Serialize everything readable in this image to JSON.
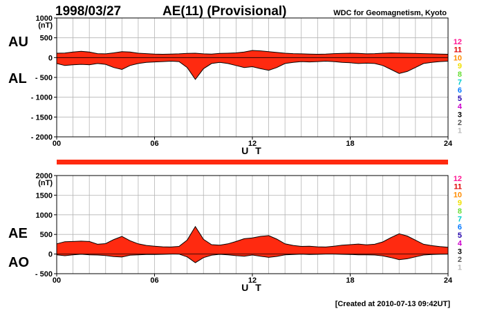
{
  "header": {
    "date": "1998/03/27",
    "title": "AE(11) (Provisional)",
    "source": "WDC for Geomagnetism, Kyoto"
  },
  "footer": {
    "created": "[Created at 2010-07-13 09:42UT]"
  },
  "colors": {
    "fill": "#ff2a10",
    "outline": "#000000",
    "grid": "#b4b4b4",
    "bar": "#ff2a10"
  },
  "chart_data": [
    {
      "type": "area",
      "panel": "AU/AL",
      "xlabel": "U T",
      "unit": "(nT)",
      "xlim": [
        0,
        24
      ],
      "ylim": [
        -2000,
        1000
      ],
      "x_ticks": [
        "00",
        "06",
        "12",
        "18",
        "24"
      ],
      "y_ticks": [
        "1000",
        "500",
        "0",
        "- 500",
        "- 1000",
        "- 1500",
        "- 2000"
      ],
      "side_labels": [
        "AU",
        "AL"
      ],
      "series": [
        {
          "name": "AU",
          "x": [
            0,
            0.5,
            1,
            1.5,
            2,
            2.5,
            3,
            3.5,
            4,
            4.5,
            5,
            5.5,
            6,
            6.5,
            7,
            7.5,
            8,
            8.5,
            9,
            9.5,
            10,
            10.5,
            11,
            11.5,
            12,
            12.5,
            13,
            13.5,
            14,
            14.5,
            15,
            15.5,
            16,
            16.5,
            17,
            17.5,
            18,
            18.5,
            19,
            19.5,
            20,
            20.5,
            21,
            21.5,
            22,
            22.5,
            23,
            23.5,
            24
          ],
          "values": [
            110,
            115,
            140,
            160,
            140,
            100,
            95,
            120,
            150,
            140,
            110,
            100,
            90,
            85,
            90,
            95,
            105,
            110,
            95,
            90,
            105,
            110,
            120,
            140,
            180,
            170,
            150,
            130,
            110,
            100,
            95,
            90,
            85,
            90,
            100,
            105,
            110,
            105,
            95,
            100,
            110,
            120,
            115,
            110,
            105,
            100,
            95,
            90,
            85
          ]
        },
        {
          "name": "AL",
          "x": [
            0,
            0.5,
            1,
            1.5,
            2,
            2.5,
            3,
            3.5,
            4,
            4.5,
            5,
            5.5,
            6,
            6.5,
            7,
            7.5,
            8,
            8.5,
            9,
            9.5,
            10,
            10.5,
            11,
            11.5,
            12,
            12.5,
            13,
            13.5,
            14,
            14.5,
            15,
            15.5,
            16,
            16.5,
            17,
            17.5,
            18,
            18.5,
            19,
            19.5,
            20,
            20.5,
            21,
            21.5,
            22,
            22.5,
            23,
            23.5,
            24
          ],
          "values": [
            -150,
            -200,
            -180,
            -170,
            -180,
            -150,
            -170,
            -250,
            -300,
            -200,
            -150,
            -120,
            -110,
            -100,
            -90,
            -100,
            -250,
            -550,
            -280,
            -150,
            -120,
            -150,
            -200,
            -250,
            -230,
            -280,
            -320,
            -250,
            -150,
            -120,
            -100,
            -110,
            -100,
            -90,
            -100,
            -120,
            -130,
            -150,
            -140,
            -150,
            -200,
            -300,
            -400,
            -350,
            -250,
            -150,
            -120,
            -100,
            -90
          ]
        }
      ],
      "levels": [
        "12",
        "11",
        "10",
        "9",
        "8",
        "7",
        "6",
        "5",
        "4",
        "3",
        "2",
        "1"
      ],
      "level_colors": [
        "#ff1493",
        "#e00000",
        "#ff8c00",
        "#f0e000",
        "#66dd33",
        "#00cccc",
        "#0077ff",
        "#2200aa",
        "#cc00cc",
        "#000000",
        "#555555",
        "#bbbbbb"
      ]
    },
    {
      "type": "area",
      "panel": "AE/AO",
      "xlabel": "U T",
      "unit": "(nT)",
      "xlim": [
        0,
        24
      ],
      "ylim": [
        -500,
        2000
      ],
      "x_ticks": [
        "00",
        "06",
        "12",
        "18",
        "24"
      ],
      "y_ticks": [
        "2000",
        "1500",
        "1000",
        "500",
        "0",
        "- 500"
      ],
      "side_labels": [
        "AE",
        "AO"
      ],
      "series": [
        {
          "name": "AE",
          "x": [
            0,
            0.5,
            1,
            1.5,
            2,
            2.5,
            3,
            3.5,
            4,
            4.5,
            5,
            5.5,
            6,
            6.5,
            7,
            7.5,
            8,
            8.5,
            9,
            9.5,
            10,
            10.5,
            11,
            11.5,
            12,
            12.5,
            13,
            13.5,
            14,
            14.5,
            15,
            15.5,
            16,
            16.5,
            17,
            17.5,
            18,
            18.5,
            19,
            19.5,
            20,
            20.5,
            21,
            21.5,
            22,
            22.5,
            23,
            23.5,
            24
          ],
          "values": [
            260,
            315,
            320,
            330,
            320,
            250,
            265,
            370,
            450,
            340,
            260,
            220,
            200,
            185,
            180,
            195,
            355,
            700,
            375,
            240,
            225,
            260,
            320,
            390,
            410,
            450,
            470,
            380,
            260,
            220,
            195,
            200,
            185,
            180,
            200,
            225,
            240,
            255,
            235,
            250,
            310,
            420,
            515,
            460,
            355,
            250,
            215,
            190,
            175
          ]
        },
        {
          "name": "AO",
          "x": [
            0,
            0.5,
            1,
            1.5,
            2,
            2.5,
            3,
            3.5,
            4,
            4.5,
            5,
            5.5,
            6,
            6.5,
            7,
            7.5,
            8,
            8.5,
            9,
            9.5,
            10,
            10.5,
            11,
            11.5,
            12,
            12.5,
            13,
            13.5,
            14,
            14.5,
            15,
            15.5,
            16,
            16.5,
            17,
            17.5,
            18,
            18.5,
            19,
            19.5,
            20,
            20.5,
            21,
            21.5,
            22,
            22.5,
            23,
            23.5,
            24
          ],
          "values": [
            -20,
            -42,
            -20,
            -5,
            -20,
            -25,
            -37,
            -65,
            -75,
            -30,
            -20,
            -10,
            -10,
            -7,
            0,
            -2,
            -72,
            -220,
            -92,
            -30,
            -7,
            -20,
            -40,
            -55,
            -25,
            -55,
            -85,
            -60,
            -20,
            -10,
            -2,
            -10,
            -7,
            0,
            0,
            -7,
            -10,
            -22,
            -22,
            -25,
            -45,
            -90,
            -142,
            -120,
            -72,
            -25,
            -12,
            -5,
            -2
          ]
        }
      ],
      "levels": [
        "12",
        "11",
        "10",
        "9",
        "8",
        "7",
        "6",
        "5",
        "4",
        "3",
        "2",
        "1"
      ],
      "level_colors": [
        "#ff1493",
        "#e00000",
        "#ff8c00",
        "#f0e000",
        "#66dd33",
        "#00cccc",
        "#0077ff",
        "#2200aa",
        "#cc00cc",
        "#000000",
        "#555555",
        "#bbbbbb"
      ]
    }
  ]
}
